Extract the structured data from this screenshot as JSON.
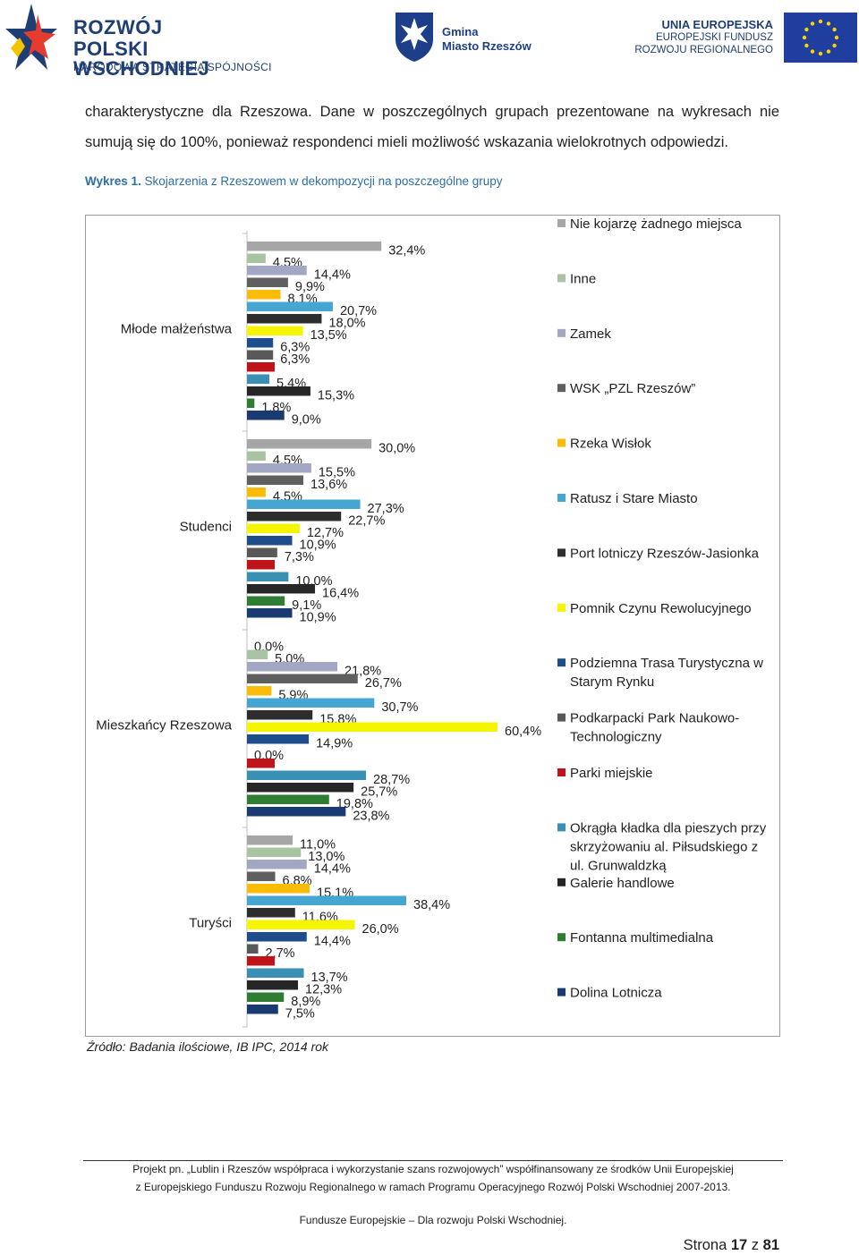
{
  "header": {
    "left_logo": {
      "line1": "ROZWÓJ",
      "line2": "POLSKI WSCHODNIEJ",
      "line3": "NARODOWA STRATEGIA SPÓJNOŚCI"
    },
    "middle_logo": {
      "line1": "Gmina",
      "line2": "Miasto Rzeszów"
    },
    "right_logo": {
      "line1": "UNIA EUROPEJSKA",
      "line2": "EUROPEJSKI FUNDUSZ",
      "line3": "ROZWOJU REGIONALNEGO"
    }
  },
  "body": {
    "line1": "charakterystyczne dla Rzeszowa. Dane w poszczególnych grupach prezentowane na wykresach nie",
    "line2": "sumują się do 100%, ponieważ respondenci mieli możliwość wskazania wielokrotnych odpowiedzi.",
    "chart_title_prefix": "Wykres 1.",
    "chart_title_rest": " Skojarzenia z Rzeszowem w dekompozycji na poszczególne grupy"
  },
  "source": "Źródło: Badania ilościowe, IB IPC, 2014 rok",
  "footer": {
    "line1": "Projekt pn. „Lublin i Rzeszów współpraca i wykorzystanie szans rozwojowych” współfinansowany ze środków Unii Europejskiej",
    "line2": "z Europejskiego Funduszu Rozwoju Regionalnego w ramach Programu Operacyjnego Rozwój Polski Wschodniej 2007-2013.",
    "line3": "Fundusze Europejskie – Dla rozwoju Polski Wschodniej.",
    "page_prefix": "Strona ",
    "page_current": "17",
    "page_mid": " z ",
    "page_total": "81"
  },
  "colors": {
    "brand_blue": "#1f3e74",
    "title_blue": "#2e6da4"
  },
  "chart_data": {
    "type": "bar",
    "orientation": "horizontal",
    "grouped": true,
    "value_suffix": "%",
    "xlim": [
      0,
      70
    ],
    "grid": false,
    "legend_position": "right",
    "categories": [
      "Młode małżeństwa",
      "Studenci",
      "Mieszkańcy Rzeszowa",
      "Turyści"
    ],
    "series": [
      {
        "name": "Nie kojarzę żadnego miejsca",
        "color": "#a6a6a6",
        "values": [
          32.4,
          30.0,
          0.0,
          11.0
        ],
        "labels": [
          "32,4%",
          "30,0%",
          "0,0%",
          "11,0%"
        ]
      },
      {
        "name": "Inne",
        "color": "#a9c4a3",
        "values": [
          4.5,
          4.5,
          5.0,
          13.0
        ],
        "labels": [
          "4,5%",
          "4,5%",
          "5,0%",
          "13,0%"
        ]
      },
      {
        "name": "Zamek",
        "color": "#a2a8c4",
        "values": [
          14.4,
          15.5,
          21.8,
          14.4
        ],
        "labels": [
          "14,4%",
          "15,5%",
          "21,8%",
          "14,4%"
        ]
      },
      {
        "name": "WSK „PZL Rzeszów”",
        "color": "#5f5f5f",
        "values": [
          9.9,
          13.6,
          26.7,
          6.8
        ],
        "labels": [
          "9,9%",
          "13,6%",
          "26,7%",
          "6,8%"
        ]
      },
      {
        "name": "Rzeka Wisłok",
        "color": "#fbbc08",
        "values": [
          8.1,
          4.5,
          5.9,
          15.1
        ],
        "labels": [
          "8,1%",
          "4,5%",
          "5,9%",
          "15,1%"
        ]
      },
      {
        "name": "Ratusz i Stare Miasto",
        "color": "#45a6d2",
        "values": [
          20.7,
          27.3,
          30.7,
          38.4
        ],
        "labels": [
          "20,7%",
          "27,3%",
          "30,7%",
          "38,4%"
        ]
      },
      {
        "name": "Port lotniczy Rzeszów-Jasionka",
        "color": "#2d2d2d",
        "values": [
          18.0,
          22.7,
          15.8,
          11.6
        ],
        "labels": [
          "18,0%",
          "22,7%",
          "15,8%",
          "11,6%"
        ]
      },
      {
        "name": "Pomnik Czynu Rewolucyjnego",
        "color": "#f5f500",
        "values": [
          13.5,
          12.7,
          60.4,
          26.0
        ],
        "labels": [
          "13,5%",
          "12,7%",
          "60,4%",
          "26,0%"
        ]
      },
      {
        "name": "Podziemna Trasa Turystyczna w Starym Rynku",
        "color": "#1e4d8c",
        "values": [
          6.3,
          10.9,
          14.9,
          14.4
        ],
        "labels": [
          "6,3%",
          "10,9%",
          "14,9%",
          "14,4%"
        ]
      },
      {
        "name": "Podkarpacki Park Naukowo-Technologiczny",
        "color": "#595959",
        "values": [
          6.3,
          7.3,
          0.0,
          2.7
        ],
        "labels": [
          "6,3%",
          "7,3%",
          "0,0%",
          "2,7%"
        ]
      },
      {
        "name": "Parki miejskie",
        "color": "#c0141b",
        "values": [
          null,
          null,
          null,
          null
        ],
        "labels": [
          "",
          "",
          "",
          ""
        ]
      },
      {
        "name": "Okrągła kładka dla pieszych przy skrzyżowaniu al. Piłsudskiego z ul. Grunwaldzką",
        "color": "#3a8fb5",
        "values": [
          5.4,
          10.0,
          28.7,
          13.7
        ],
        "labels": [
          "5,4%",
          "10,0%",
          "28,7%",
          "13,7%"
        ]
      },
      {
        "name": "Galerie handlowe",
        "color": "#262626",
        "values": [
          15.3,
          16.4,
          25.7,
          12.3
        ],
        "labels": [
          "15,3%",
          "16,4%",
          "25,7%",
          "12,3%"
        ]
      },
      {
        "name": "Fontanna multimedialna",
        "color": "#2e7d32",
        "values": [
          1.8,
          9.1,
          19.8,
          8.9
        ],
        "labels": [
          "1,8%",
          "9,1%",
          "19,8%",
          "8,9%"
        ]
      },
      {
        "name": "Dolina Lotnicza",
        "color": "#1a3a72",
        "values": [
          9.0,
          10.9,
          23.8,
          7.5
        ],
        "labels": [
          "9,0%",
          "10,9%",
          "23,8%",
          "7,5%"
        ]
      }
    ],
    "legend_lines": [
      [
        "Nie kojarzę żadnego miejsca"
      ],
      [
        "Inne"
      ],
      [
        "Zamek"
      ],
      [
        "WSK „PZL Rzeszów”"
      ],
      [
        "Rzeka Wisłok"
      ],
      [
        "Ratusz i Stare Miasto"
      ],
      [
        "Port lotniczy Rzeszów-Jasionka"
      ],
      [
        "Pomnik Czynu Rewolucyjnego"
      ],
      [
        "Podziemna Trasa Turystyczna w",
        "Starym Rynku"
      ],
      [
        "Podkarpacki Park Naukowo-",
        "Technologiczny"
      ],
      [
        "Parki miejskie"
      ],
      [
        "Okrągła kładka dla pieszych przy",
        "skrzyżowaniu al. Piłsudskiego z",
        "ul. Grunwaldzką"
      ],
      [
        "Galerie handlowe"
      ],
      [
        "Fontanna multimedialna"
      ],
      [
        "Dolina Lotnicza"
      ]
    ]
  }
}
